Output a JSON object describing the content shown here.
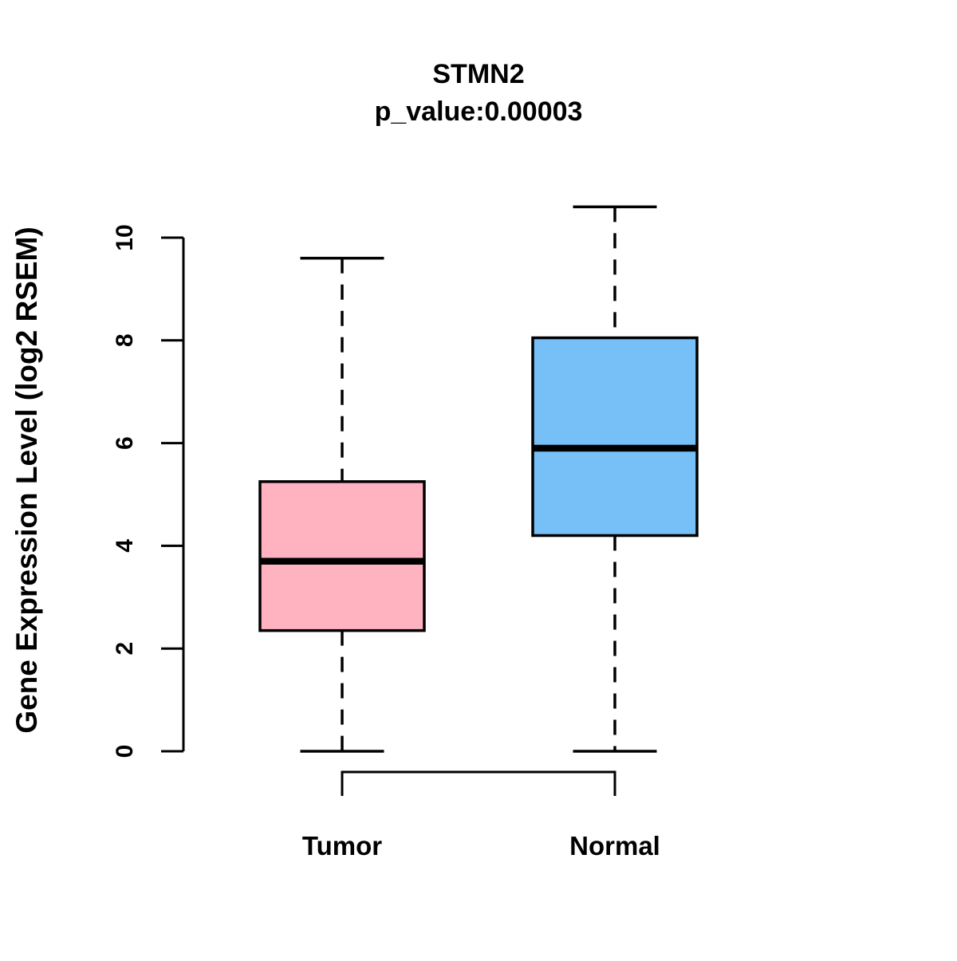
{
  "figure": {
    "title": "STMN2",
    "subtitle": "p_value:0.00003"
  },
  "chart_data": {
    "type": "boxplot",
    "title": "STMN2",
    "subtitle": "p_value:0.00003",
    "xlabel": "",
    "ylabel": "Gene Expression Level (log2 RSEM)",
    "ylim": [
      0,
      10.65
    ],
    "yticks": [
      0,
      2,
      4,
      6,
      8,
      10
    ],
    "categories": [
      "Tumor",
      "Normal"
    ],
    "series": [
      {
        "name": "Tumor",
        "whisker_low": 0,
        "q1": 2.35,
        "median": 3.7,
        "q3": 5.25,
        "whisker_high": 9.6,
        "fill_color": "#FFB3C1"
      },
      {
        "name": "Normal",
        "whisker_low": 0,
        "q1": 4.2,
        "median": 5.9,
        "q3": 8.05,
        "whisker_high": 10.6,
        "fill_color": "#76BFF7"
      }
    ],
    "stroke_color": "#000000",
    "background_color": "#FFFFFF",
    "grid": false,
    "legend": "none",
    "whisker_style": "dashed"
  }
}
